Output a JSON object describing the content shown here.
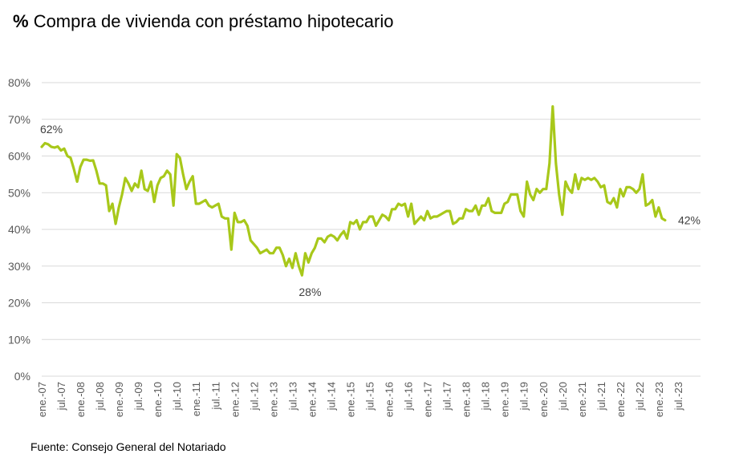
{
  "title_prefix": "%",
  "title_text": "Compra de vivienda con préstamo hipotecario",
  "source": "Fuente: Consejo General del Notariado",
  "colors": {
    "line": "#a8c81a",
    "grid": "#d9d9d9",
    "tick": "#595959"
  },
  "chart_data": {
    "type": "line",
    "title": "% Compra de vivienda con préstamo hipotecario",
    "xlabel": "",
    "ylabel": "",
    "ylim": [
      0,
      80
    ],
    "yticks": [
      "0%",
      "10%",
      "20%",
      "30%",
      "40%",
      "50%",
      "60%",
      "70%",
      "80%"
    ],
    "xticks": [
      "ene.-07",
      "jul.-07",
      "ene.-08",
      "jul.-08",
      "ene.-09",
      "jul.-09",
      "ene.-10",
      "jul.-10",
      "ene.-11",
      "jul.-11",
      "ene.-12",
      "jul.-12",
      "ene.-13",
      "jul.-13",
      "ene.-14",
      "jul.-14",
      "ene.-15",
      "jul.-15",
      "ene.-16",
      "jul.-16",
      "ene.-17",
      "jul.-17",
      "ene.-18",
      "jul.-18",
      "ene.-19",
      "jul.-19",
      "ene.-20",
      "jul.-20",
      "ene.-21",
      "jul.-21",
      "ene.-22",
      "jul.-22",
      "ene.-23",
      "jul.-23"
    ],
    "grid": true,
    "legend": "none",
    "series": [
      {
        "start": "ene.-07",
        "frequency": "monthly",
        "values": [
          62.5,
          63.5,
          63.2,
          62.5,
          62.3,
          62.6,
          61.5,
          62.0,
          60.0,
          59.5,
          56.5,
          53.0,
          57.0,
          59.0,
          59.0,
          58.7,
          58.8,
          56.0,
          52.5,
          52.5,
          52.0,
          45.0,
          47.0,
          41.5,
          46.0,
          49.5,
          54.0,
          52.5,
          50.5,
          52.5,
          51.5,
          56.0,
          51.0,
          50.5,
          53.0,
          47.5,
          52.0,
          54.0,
          54.5,
          56.0,
          55.0,
          46.5,
          60.5,
          59.5,
          55.0,
          51.0,
          53.0,
          54.5,
          47.0,
          47.0,
          47.5,
          48.0,
          46.5,
          46.0,
          46.5,
          47.0,
          43.5,
          43.0,
          43.0,
          34.5,
          44.5,
          42.0,
          42.0,
          42.5,
          41.0,
          37.0,
          36.0,
          35.0,
          33.5,
          34.0,
          34.5,
          33.5,
          33.5,
          35.0,
          35.0,
          33.0,
          30.0,
          32.0,
          29.5,
          33.5,
          30.0,
          27.5,
          33.5,
          31.0,
          33.5,
          35.0,
          37.5,
          37.5,
          36.5,
          38.0,
          38.5,
          38.0,
          37.0,
          38.5,
          39.5,
          37.5,
          42.0,
          41.5,
          42.5,
          40.0,
          42.0,
          42.0,
          43.5,
          43.5,
          41.0,
          42.5,
          44.0,
          43.5,
          42.5,
          45.5,
          45.5,
          47.0,
          46.5,
          47.0,
          43.5,
          47.0,
          41.5,
          42.5,
          43.5,
          42.5,
          45.0,
          43.0,
          43.5,
          43.5,
          44.0,
          44.5,
          45.0,
          45.0,
          41.5,
          42.0,
          43.0,
          43.0,
          45.5,
          45.0,
          45.0,
          46.5,
          44.0,
          46.5,
          46.5,
          48.5,
          45.0,
          44.5,
          44.5,
          44.5,
          47.0,
          47.5,
          49.5,
          49.5,
          49.5,
          45.0,
          43.5,
          53.0,
          49.5,
          48.0,
          51.0,
          50.0,
          51.0,
          51.0,
          58.0,
          73.5,
          58.0,
          49.5,
          44.0,
          53.0,
          51.0,
          50.0,
          55.0,
          51.0,
          54.0,
          53.5,
          54.0,
          53.5,
          54.0,
          53.0,
          51.5,
          52.0,
          47.5,
          47.0,
          48.5,
          46.0,
          51.0,
          49.0,
          51.5,
          51.5,
          51.0,
          50.0,
          51.0,
          55.0,
          46.5,
          47.0,
          48.0,
          43.5,
          46.0,
          43.0,
          42.5
        ]
      }
    ],
    "annotations": [
      "62%",
      "28%",
      "42%"
    ]
  }
}
